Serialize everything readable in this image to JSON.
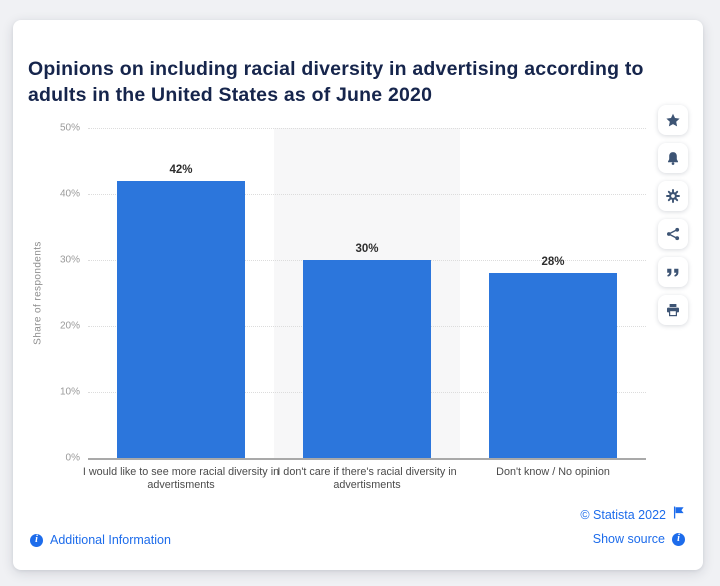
{
  "header": {
    "title": "Opinions on including racial diversity in advertising according to adults in the United States as of June 2020"
  },
  "chart_data": {
    "type": "bar",
    "title": "Opinions on including racial diversity in advertising according to adults in the United States as of June 2020",
    "categories": [
      "I would like to see more racial diversity in advertisments",
      "I don't care if there's racial diversity in advertisments",
      "Don't know / No opinion"
    ],
    "values": [
      42,
      30,
      28
    ],
    "labels": [
      "42%",
      "30%",
      "28%"
    ],
    "xlabel": "",
    "ylabel": "Share of respondents",
    "ylim": [
      0,
      50
    ],
    "yticks": [
      0,
      10,
      20,
      30,
      40,
      50
    ],
    "ytick_labels": [
      "0%",
      "10%",
      "20%",
      "30%",
      "40%",
      "50%"
    ],
    "grid": "horizontal-dotted",
    "legend": "none",
    "bar_color": "#2c76dc",
    "band_color": "#f7f7f8"
  },
  "toolbar": {
    "buttons": [
      {
        "id": "favorite",
        "icon": "star-icon"
      },
      {
        "id": "alerts",
        "icon": "bell-icon"
      },
      {
        "id": "settings",
        "icon": "gear-icon"
      },
      {
        "id": "share",
        "icon": "share-icon"
      },
      {
        "id": "cite",
        "icon": "quote-icon"
      },
      {
        "id": "print",
        "icon": "printer-icon"
      }
    ]
  },
  "footer": {
    "additional_information": "Additional Information",
    "copyright": "© Statista 2022",
    "show_source": "Show source"
  },
  "colors": {
    "bar_blue": "#2c76dc",
    "link_blue": "#1d6ceb",
    "title_navy": "#16254c",
    "icon_navy": "#3d5474",
    "page_background": "#f0f1f4"
  }
}
